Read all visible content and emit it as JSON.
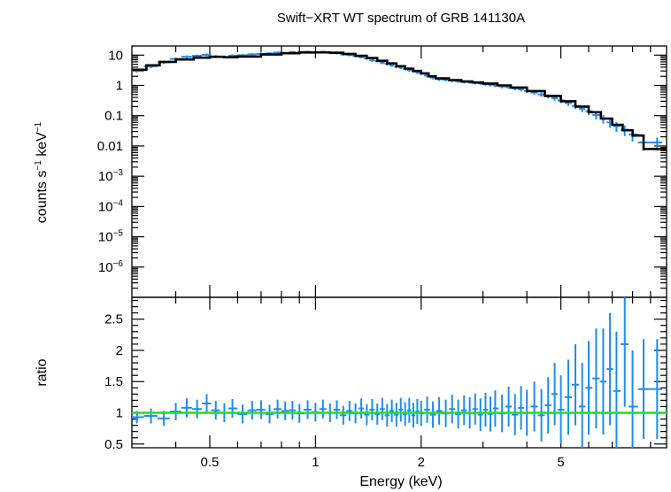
{
  "chart_data": [
    {
      "type": "scatter",
      "panel": "spectrum",
      "title": "Swift−XRT WT spectrum of GRB 141130A",
      "ylabel_parts": [
        "counts s",
        "−1",
        " keV",
        "−1"
      ],
      "xscale": "log",
      "yscale": "log",
      "xlim": [
        0.3,
        10
      ],
      "ylim": [
        1e-07,
        20
      ],
      "y_ticks": [
        {
          "value": 10,
          "base": "10",
          "exp": ""
        },
        {
          "value": 1,
          "base": "1",
          "exp": ""
        },
        {
          "value": 0.1,
          "base": "0.1",
          "exp": ""
        },
        {
          "value": 0.01,
          "base": "0.01",
          "exp": ""
        },
        {
          "value": 0.001,
          "base": "10",
          "exp": "−3"
        },
        {
          "value": 0.0001,
          "base": "10",
          "exp": "−4"
        },
        {
          "value": 1e-05,
          "base": "10",
          "exp": "−5"
        },
        {
          "value": 1e-06,
          "base": "10",
          "exp": "−6"
        }
      ],
      "model_step": [
        [
          0.3,
          3.3
        ],
        [
          0.33,
          4.6
        ],
        [
          0.36,
          6.0
        ],
        [
          0.4,
          7.2
        ],
        [
          0.45,
          8.2
        ],
        [
          0.5,
          8.8
        ],
        [
          0.55,
          8.5
        ],
        [
          0.6,
          9.0
        ],
        [
          0.7,
          10.5
        ],
        [
          0.8,
          11.5
        ],
        [
          0.9,
          12.2
        ],
        [
          1.0,
          12.3
        ],
        [
          1.1,
          12.0
        ],
        [
          1.2,
          11.0
        ],
        [
          1.3,
          9.5
        ],
        [
          1.4,
          8.0
        ],
        [
          1.5,
          6.5
        ],
        [
          1.6,
          5.3
        ],
        [
          1.7,
          4.3
        ],
        [
          1.8,
          3.6
        ],
        [
          1.9,
          3.0
        ],
        [
          2.0,
          2.5
        ],
        [
          2.1,
          2.0
        ],
        [
          2.2,
          1.7
        ],
        [
          2.4,
          1.5
        ],
        [
          2.6,
          1.35
        ],
        [
          2.8,
          1.25
        ],
        [
          3.0,
          1.15
        ],
        [
          3.3,
          1.0
        ],
        [
          3.6,
          0.85
        ],
        [
          4.0,
          0.65
        ],
        [
          4.5,
          0.45
        ],
        [
          5.0,
          0.3
        ],
        [
          5.5,
          0.2
        ],
        [
          6.0,
          0.13
        ],
        [
          6.5,
          0.08
        ],
        [
          7.0,
          0.05
        ],
        [
          7.5,
          0.033
        ],
        [
          8.0,
          0.022
        ],
        [
          8.6,
          0.008
        ],
        [
          9.4,
          0.008
        ],
        [
          10.0,
          0.003
        ]
      ],
      "series": [
        {
          "color": "#1e8cf0",
          "points": [
            [
              0.31,
              3.0,
              0.32
            ],
            [
              0.34,
              4.3,
              0.6
            ],
            [
              0.37,
              5.8,
              0.7
            ],
            [
              0.4,
              7.5,
              0.8
            ],
            [
              0.43,
              8.8,
              1.0
            ],
            [
              0.46,
              9.5,
              1.0
            ],
            [
              0.49,
              10.2,
              1.1
            ],
            [
              0.52,
              9.0,
              1.0
            ],
            [
              0.55,
              8.6,
              0.9
            ],
            [
              0.58,
              9.6,
              1.0
            ],
            [
              0.62,
              9.9,
              1.0
            ],
            [
              0.66,
              10.6,
              1.0
            ],
            [
              0.7,
              11.0,
              1.0
            ],
            [
              0.74,
              11.4,
              1.0
            ],
            [
              0.78,
              12.2,
              1.0
            ],
            [
              0.82,
              11.8,
              1.0
            ],
            [
              0.86,
              12.6,
              1.0
            ],
            [
              0.9,
              12.1,
              1.0
            ],
            [
              0.95,
              12.9,
              1.0
            ],
            [
              1.0,
              12.4,
              1.0
            ],
            [
              1.05,
              12.8,
              1.0
            ],
            [
              1.1,
              12.0,
              1.0
            ],
            [
              1.15,
              11.6,
              1.0
            ],
            [
              1.2,
              10.6,
              1.0
            ],
            [
              1.25,
              10.1,
              0.9
            ],
            [
              1.3,
              9.4,
              0.9
            ],
            [
              1.35,
              8.6,
              0.8
            ],
            [
              1.4,
              7.8,
              0.8
            ],
            [
              1.45,
              6.7,
              0.7
            ],
            [
              1.5,
              6.4,
              0.7
            ],
            [
              1.55,
              5.6,
              0.6
            ],
            [
              1.6,
              5.1,
              0.6
            ],
            [
              1.65,
              4.6,
              0.5
            ],
            [
              1.7,
              4.2,
              0.5
            ],
            [
              1.75,
              3.9,
              0.45
            ],
            [
              1.8,
              3.5,
              0.4
            ],
            [
              1.85,
              3.2,
              0.38
            ],
            [
              1.9,
              3.0,
              0.35
            ],
            [
              1.95,
              2.7,
              0.33
            ],
            [
              2.0,
              2.5,
              0.3
            ],
            [
              2.08,
              2.1,
              0.26
            ],
            [
              2.16,
              1.8,
              0.22
            ],
            [
              2.25,
              1.6,
              0.2
            ],
            [
              2.35,
              1.55,
              0.19
            ],
            [
              2.45,
              1.45,
              0.18
            ],
            [
              2.55,
              1.38,
              0.17
            ],
            [
              2.65,
              1.33,
              0.16
            ],
            [
              2.75,
              1.28,
              0.15
            ],
            [
              2.85,
              1.22,
              0.15
            ],
            [
              2.95,
              1.18,
              0.14
            ],
            [
              3.05,
              1.12,
              0.14
            ],
            [
              3.15,
              1.05,
              0.13
            ],
            [
              3.25,
              1.0,
              0.13
            ],
            [
              3.4,
              0.92,
              0.12
            ],
            [
              3.55,
              0.88,
              0.12
            ],
            [
              3.7,
              0.8,
              0.11
            ],
            [
              3.85,
              0.74,
              0.1
            ],
            [
              4.0,
              0.66,
              0.1
            ],
            [
              4.2,
              0.58,
              0.09
            ],
            [
              4.4,
              0.5,
              0.08
            ],
            [
              4.6,
              0.44,
              0.07
            ],
            [
              4.8,
              0.38,
              0.065
            ],
            [
              5.0,
              0.32,
              0.06
            ],
            [
              5.25,
              0.26,
              0.05
            ],
            [
              5.5,
              0.21,
              0.045
            ],
            [
              5.75,
              0.17,
              0.04
            ],
            [
              6.0,
              0.14,
              0.035
            ],
            [
              6.3,
              0.105,
              0.03
            ],
            [
              6.6,
              0.08,
              0.025
            ],
            [
              6.9,
              0.06,
              0.02
            ],
            [
              7.2,
              0.045,
              0.016
            ],
            [
              7.6,
              0.034,
              0.013
            ],
            [
              8.0,
              0.024,
              0.01
            ],
            [
              8.6,
              0.013,
              0.006
            ],
            [
              9.4,
              0.013,
              0.006
            ]
          ]
        }
      ]
    },
    {
      "type": "scatter",
      "panel": "ratio",
      "xlabel": "Energy (keV)",
      "ylabel": "ratio",
      "xscale": "log",
      "xlim": [
        0.3,
        10
      ],
      "ylim": [
        0.44,
        2.85
      ],
      "x_ticks": [
        {
          "value": 0.5,
          "label": "0.5"
        },
        {
          "value": 1,
          "label": "1"
        },
        {
          "value": 2,
          "label": "2"
        },
        {
          "value": 5,
          "label": "5"
        }
      ],
      "y_ticks": [
        {
          "value": 0.5,
          "label": "0.5"
        },
        {
          "value": 1,
          "label": "1"
        },
        {
          "value": 1.5,
          "label": "1.5"
        },
        {
          "value": 2,
          "label": "2"
        },
        {
          "value": 2.5,
          "label": "2.5"
        }
      ],
      "reference_line": {
        "y": 1,
        "color": "#22dd22"
      },
      "series": [
        {
          "color": "#1e8cf0",
          "points": [
            [
              0.31,
              0.93,
              0.1
            ],
            [
              0.34,
              0.95,
              0.12
            ],
            [
              0.37,
              0.91,
              0.12
            ],
            [
              0.4,
              1.02,
              0.14
            ],
            [
              0.43,
              1.08,
              0.15
            ],
            [
              0.46,
              1.06,
              0.15
            ],
            [
              0.49,
              1.15,
              0.15
            ],
            [
              0.52,
              1.04,
              0.15
            ],
            [
              0.55,
              1.0,
              0.15
            ],
            [
              0.58,
              1.07,
              0.15
            ],
            [
              0.62,
              0.98,
              0.15
            ],
            [
              0.66,
              1.04,
              0.15
            ],
            [
              0.7,
              1.05,
              0.15
            ],
            [
              0.74,
              0.98,
              0.15
            ],
            [
              0.78,
              1.06,
              0.15
            ],
            [
              0.82,
              1.03,
              0.15
            ],
            [
              0.86,
              1.04,
              0.15
            ],
            [
              0.9,
              0.99,
              0.15
            ],
            [
              0.95,
              1.05,
              0.15
            ],
            [
              1.0,
              1.01,
              0.15
            ],
            [
              1.05,
              1.06,
              0.15
            ],
            [
              1.1,
              1.0,
              0.15
            ],
            [
              1.15,
              1.05,
              0.15
            ],
            [
              1.2,
              0.96,
              0.15
            ],
            [
              1.25,
              1.03,
              0.16
            ],
            [
              1.3,
              0.99,
              0.16
            ],
            [
              1.35,
              1.07,
              0.16
            ],
            [
              1.4,
              0.97,
              0.17
            ],
            [
              1.45,
              1.05,
              0.17
            ],
            [
              1.5,
              0.98,
              0.17
            ],
            [
              1.55,
              1.06,
              0.18
            ],
            [
              1.6,
              0.96,
              0.18
            ],
            [
              1.65,
              1.03,
              0.18
            ],
            [
              1.7,
              0.97,
              0.19
            ],
            [
              1.75,
              1.05,
              0.19
            ],
            [
              1.8,
              0.98,
              0.19
            ],
            [
              1.85,
              1.04,
              0.2
            ],
            [
              1.9,
              0.96,
              0.2
            ],
            [
              1.95,
              1.02,
              0.2
            ],
            [
              2.0,
              0.99,
              0.2
            ],
            [
              2.08,
              1.05,
              0.21
            ],
            [
              2.16,
              0.97,
              0.21
            ],
            [
              2.25,
              1.03,
              0.22
            ],
            [
              2.35,
              0.99,
              0.22
            ],
            [
              2.45,
              1.06,
              0.23
            ],
            [
              2.55,
              0.98,
              0.23
            ],
            [
              2.65,
              1.04,
              0.24
            ],
            [
              2.75,
              1.0,
              0.25
            ],
            [
              2.85,
              1.06,
              0.25
            ],
            [
              2.95,
              0.97,
              0.26
            ],
            [
              3.05,
              1.05,
              0.27
            ],
            [
              3.15,
              0.98,
              0.28
            ],
            [
              3.25,
              1.07,
              0.29
            ],
            [
              3.4,
              0.99,
              0.3
            ],
            [
              3.55,
              1.1,
              0.32
            ],
            [
              3.7,
              0.97,
              0.33
            ],
            [
              3.85,
              1.08,
              0.35
            ],
            [
              4.0,
              1.0,
              0.37
            ],
            [
              4.2,
              1.1,
              0.4
            ],
            [
              4.4,
              0.96,
              0.42
            ],
            [
              4.6,
              1.12,
              0.45
            ],
            [
              4.8,
              1.3,
              0.5
            ],
            [
              5.0,
              1.05,
              0.55
            ],
            [
              5.25,
              1.25,
              0.6
            ],
            [
              5.5,
              1.45,
              0.65
            ],
            [
              5.75,
              1.1,
              0.7
            ],
            [
              6.0,
              1.4,
              0.75
            ],
            [
              6.3,
              1.55,
              0.8
            ],
            [
              6.6,
              1.5,
              0.85
            ],
            [
              6.9,
              1.7,
              0.9
            ],
            [
              7.2,
              1.35,
              0.95
            ],
            [
              7.6,
              2.1,
              1.0
            ],
            [
              8.0,
              1.1,
              0.9
            ],
            [
              8.6,
              1.38,
              0.8
            ],
            [
              9.4,
              1.38,
              0.8
            ]
          ]
        }
      ]
    }
  ]
}
